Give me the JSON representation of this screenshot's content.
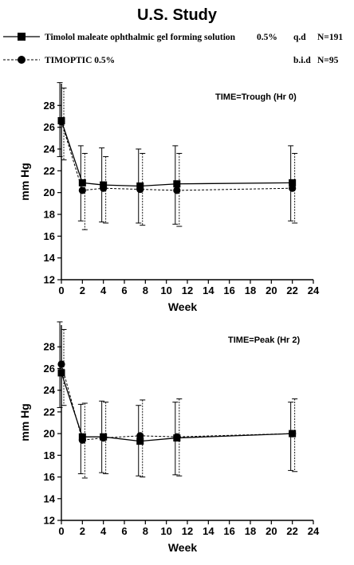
{
  "title": "U.S. Study",
  "legend": [
    {
      "name": "Timolol maleate ophthalmic gel forming solution",
      "conc": "0.5%",
      "dose": "q.d",
      "n": "N=191"
    },
    {
      "name": "TIMOPTIC 0.5%",
      "conc": "",
      "dose": "b.i.d",
      "n": "N=95"
    }
  ],
  "chart_data": [
    {
      "type": "line",
      "panel_label": "TIME=Trough (Hr 0)",
      "xlabel": "Week",
      "ylabel": "mm Hg",
      "xlim": [
        0,
        24
      ],
      "ylim": [
        12,
        30
      ],
      "xticks": [
        0,
        2,
        4,
        6,
        8,
        10,
        12,
        14,
        16,
        18,
        20,
        22,
        24
      ],
      "yticks": [
        12,
        14,
        16,
        18,
        20,
        22,
        24,
        26,
        28
      ],
      "grid": false,
      "legend_position": "top",
      "series": [
        {
          "name": "Timolol maleate ophthalmic gel forming solution 0.5% q.d",
          "marker": "square",
          "style": "solid",
          "x": [
            0,
            2,
            4,
            7.5,
            11,
            22
          ],
          "y": [
            26.6,
            20.9,
            20.7,
            20.6,
            20.8,
            20.9
          ],
          "err_low": [
            23.3,
            17.4,
            17.3,
            17.2,
            17.1,
            17.4
          ],
          "err_high": [
            30.1,
            24.3,
            24.1,
            24.0,
            24.3,
            24.3
          ]
        },
        {
          "name": "TIMOPTIC 0.5% b.i.d",
          "marker": "circle",
          "style": "dashed",
          "x": [
            0,
            2,
            4,
            7.5,
            11,
            22
          ],
          "y": [
            26.5,
            20.2,
            20.4,
            20.3,
            20.2,
            20.4
          ],
          "err_low": [
            23.0,
            16.6,
            17.2,
            17.0,
            16.9,
            17.2
          ],
          "err_high": [
            29.6,
            23.6,
            23.3,
            23.6,
            23.6,
            23.6
          ]
        }
      ]
    },
    {
      "type": "line",
      "panel_label": "TIME=Peak (Hr 2)",
      "xlabel": "Week",
      "ylabel": "mm Hg",
      "xlim": [
        0,
        24
      ],
      "ylim": [
        12,
        30
      ],
      "xticks": [
        0,
        2,
        4,
        6,
        8,
        10,
        12,
        14,
        16,
        18,
        20,
        22,
        24
      ],
      "yticks": [
        12,
        14,
        16,
        18,
        20,
        22,
        24,
        26,
        28
      ],
      "grid": false,
      "legend_position": "top",
      "series": [
        {
          "name": "Timolol maleate ophthalmic gel forming solution 0.5% q.d",
          "marker": "square",
          "style": "solid",
          "x": [
            0,
            2,
            4,
            7.5,
            11,
            22
          ],
          "y": [
            25.6,
            19.7,
            19.7,
            19.3,
            19.6,
            20.0
          ],
          "err_low": [
            22.4,
            16.3,
            16.4,
            16.1,
            16.2,
            16.6
          ],
          "err_high": [
            30.3,
            22.7,
            23.0,
            22.6,
            22.9,
            22.9
          ]
        },
        {
          "name": "TIMOPTIC 0.5% b.i.d",
          "marker": "circle",
          "style": "dashed",
          "x": [
            0,
            2,
            4,
            7.5,
            11,
            22
          ],
          "y": [
            26.4,
            19.4,
            19.6,
            19.8,
            19.7,
            20.0
          ],
          "err_low": [
            22.6,
            15.9,
            16.3,
            16.0,
            16.1,
            16.5
          ],
          "err_high": [
            29.6,
            22.8,
            22.9,
            23.1,
            23.2,
            23.2
          ]
        }
      ]
    }
  ]
}
